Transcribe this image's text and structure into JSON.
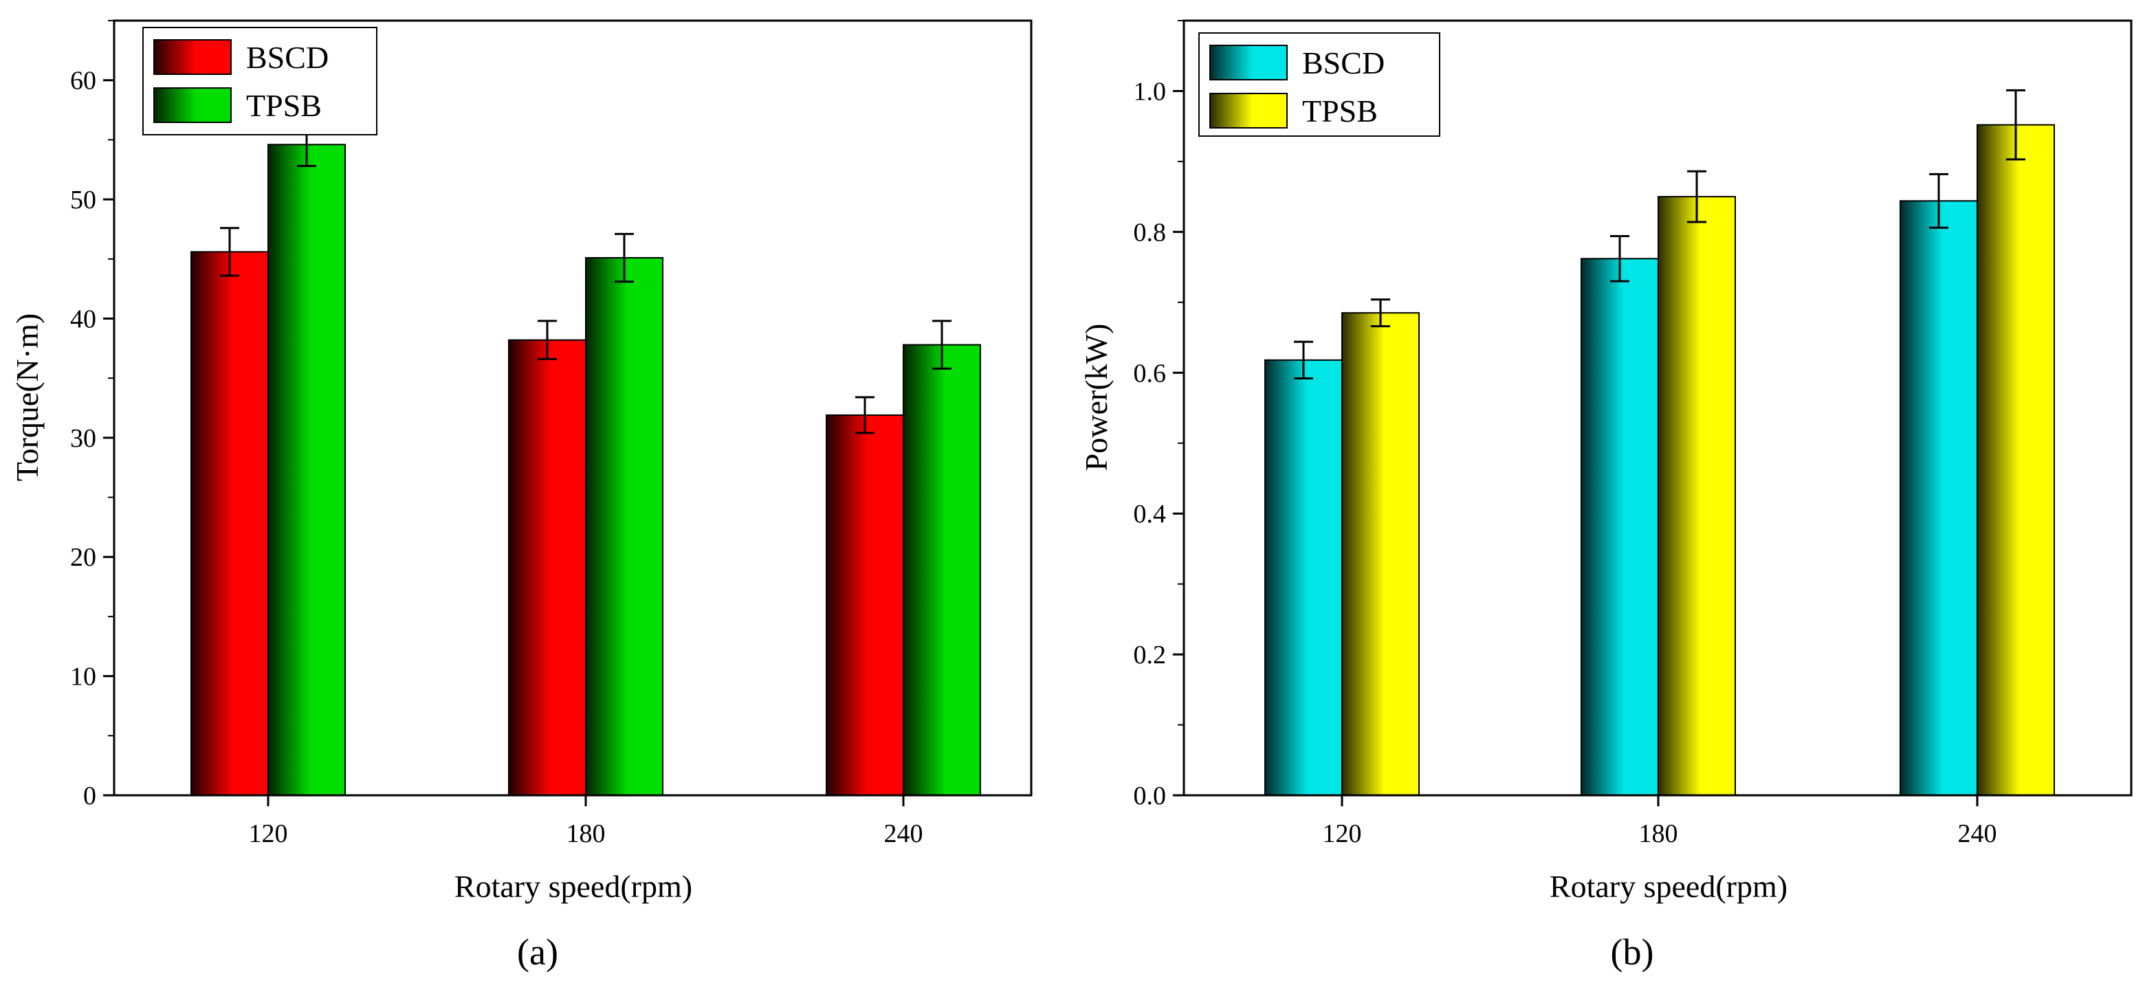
{
  "panels": [
    {
      "label": "(a)",
      "chart_data": {
        "type": "bar",
        "categories": [
          "120",
          "180",
          "240"
        ],
        "series": [
          {
            "name": "BSCD",
            "values": [
              45.6,
              38.2,
              31.9
            ],
            "errors": [
              2.0,
              1.6,
              1.5
            ]
          },
          {
            "name": "TPSB",
            "values": [
              54.6,
              45.1,
              37.8
            ],
            "errors": [
              1.8,
              2.0,
              2.0
            ]
          }
        ],
        "title": "",
        "xlabel": "Rotary speed(rpm)",
        "ylabel": "Torque(N·m)",
        "ylim": [
          0,
          65
        ],
        "yticks": [
          0,
          10,
          20,
          30,
          40,
          50,
          60
        ],
        "ytick_labels": [
          "0",
          "10",
          "20",
          "30",
          "40",
          "50",
          "60"
        ],
        "grid": false,
        "legend_position": "top-left"
      }
    },
    {
      "label": "(b)",
      "chart_data": {
        "type": "bar",
        "categories": [
          "120",
          "180",
          "240"
        ],
        "series": [
          {
            "name": "BSCD",
            "values": [
              0.618,
              0.762,
              0.844
            ],
            "errors": [
              0.026,
              0.032,
              0.038
            ]
          },
          {
            "name": "TPSB",
            "values": [
              0.685,
              0.85,
              0.952
            ],
            "errors": [
              0.019,
              0.036,
              0.049
            ]
          }
        ],
        "title": "",
        "xlabel": "Rotary speed(rpm)",
        "ylabel": "Power(kW)",
        "ylim": [
          0,
          1.1
        ],
        "yticks": [
          0,
          0.2,
          0.4,
          0.6,
          0.8,
          1.0
        ],
        "ytick_labels": [
          "0.0",
          "0.2",
          "0.4",
          "0.6",
          "0.8",
          "1.0"
        ],
        "grid": false,
        "legend_position": "top-left"
      }
    }
  ],
  "colors": {
    "a_bscd": "#ff0000",
    "a_tpsb": "#00dd00",
    "b_bscd": "#00e5e5",
    "b_tpsb": "#ffff00"
  }
}
